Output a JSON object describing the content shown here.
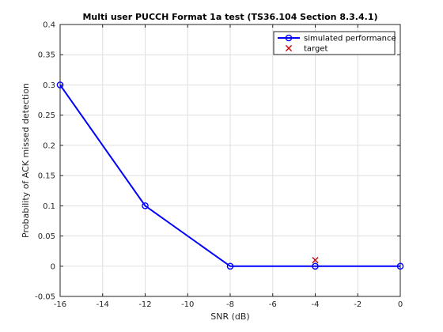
{
  "chart_data": {
    "type": "line",
    "title": "Multi user PUCCH Format 1a test (TS36.104 Section 8.3.4.1)",
    "xlabel": "SNR (dB)",
    "ylabel": "Probability of ACK missed detection",
    "xlim": [
      -16,
      0
    ],
    "ylim": [
      -0.05,
      0.4
    ],
    "xticks": [
      -16,
      -14,
      -12,
      -10,
      -8,
      -6,
      -4,
      -2,
      0
    ],
    "yticks": [
      -0.05,
      0,
      0.05,
      0.1,
      0.15,
      0.2,
      0.25,
      0.3,
      0.35,
      0.4
    ],
    "xtick_labels": [
      "-16",
      "-14",
      "-12",
      "-10",
      "-8",
      "-6",
      "-4",
      "-2",
      "0"
    ],
    "ytick_labels": [
      "-0.05",
      "0",
      "0.05",
      "0.1",
      "0.15",
      "0.2",
      "0.25",
      "0.3",
      "0.35",
      "0.4"
    ],
    "grid": true,
    "legend_position": "top-right",
    "series": [
      {
        "name": "simulated performance",
        "color": "#0000ff",
        "marker": "circle",
        "x": [
          -16,
          -12,
          -8,
          -4,
          0
        ],
        "y": [
          0.3,
          0.1,
          0,
          0,
          0
        ]
      },
      {
        "name": "target",
        "color": "#d00000",
        "marker": "x",
        "x": [
          -4
        ],
        "y": [
          0.01
        ]
      }
    ]
  }
}
